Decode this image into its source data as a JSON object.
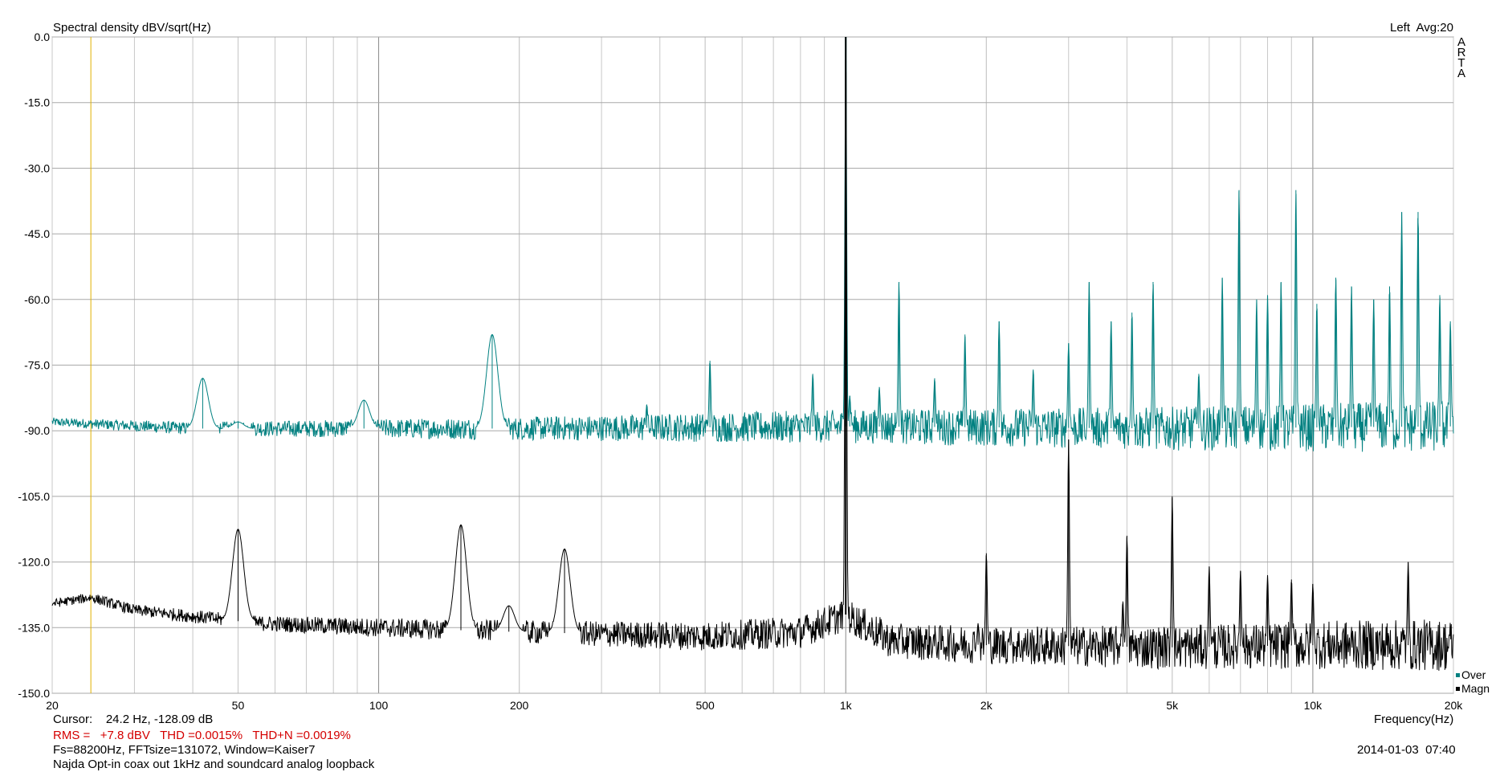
{
  "header": {
    "title": "Spectral density dBV/sqrt(Hz)",
    "channel_info": "Left  Avg:20",
    "brand_letters": [
      "A",
      "R",
      "T",
      "A"
    ]
  },
  "footer": {
    "cursor": "Cursor:    24.2 Hz, -128.09 dB",
    "rms": "RMS =   +7.8 dBV   THD =0.0015%   THD+N =0.0019%",
    "fs": "Fs=88200Hz, FFTsize=131072, Window=Kaiser7",
    "note": "Najda Opt-in coax out 1kHz and soundcard analog loopback",
    "xaxis_label": "Frequency(Hz)",
    "timestamp": "2014-01-03  07:40"
  },
  "chart_data": {
    "type": "line",
    "xscale": "log",
    "xlim": [
      20,
      20000
    ],
    "ylim": [
      -150,
      0
    ],
    "grid": true,
    "cursor_x": 24.2,
    "x_ticks": [
      {
        "value": 20,
        "label": "20"
      },
      {
        "value": 50,
        "label": "50"
      },
      {
        "value": 100,
        "label": "100"
      },
      {
        "value": 200,
        "label": "200"
      },
      {
        "value": 500,
        "label": "500"
      },
      {
        "value": 1000,
        "label": "1k"
      },
      {
        "value": 2000,
        "label": "2k"
      },
      {
        "value": 5000,
        "label": "5k"
      },
      {
        "value": 10000,
        "label": "10k"
      },
      {
        "value": 20000,
        "label": "20k"
      }
    ],
    "y_ticks": [
      {
        "value": 0,
        "label": "0.0"
      },
      {
        "value": -15,
        "label": "-15.0"
      },
      {
        "value": -30,
        "label": "-30.0"
      },
      {
        "value": -45,
        "label": "-45.0"
      },
      {
        "value": -60,
        "label": "-60.0"
      },
      {
        "value": -75,
        "label": "-75.0"
      },
      {
        "value": -90,
        "label": "-90.0"
      },
      {
        "value": -105,
        "label": "-105.0"
      },
      {
        "value": -120,
        "label": "-120.0"
      },
      {
        "value": -135,
        "label": "-135.0"
      },
      {
        "value": -150,
        "label": "-150.0"
      }
    ],
    "legend_position": "bottom-right",
    "series": [
      {
        "name": "Over",
        "color": "#008080",
        "noise_floor": [
          [
            20,
            -88
          ],
          [
            40,
            -89.5
          ],
          [
            200,
            -89.5
          ],
          [
            1000,
            -89
          ],
          [
            5000,
            -89.5
          ],
          [
            20000,
            -89
          ]
        ],
        "peaks": [
          [
            42,
            -78
          ],
          [
            50,
            -88
          ],
          [
            93,
            -83
          ],
          [
            175,
            -68
          ],
          [
            375,
            -84
          ],
          [
            512,
            -74
          ],
          [
            850,
            -77
          ],
          [
            1000,
            0
          ],
          [
            1020,
            -82
          ],
          [
            1180,
            -80
          ],
          [
            1300,
            -56
          ],
          [
            1550,
            -78
          ],
          [
            1800,
            -68
          ],
          [
            2130,
            -65
          ],
          [
            2520,
            -76
          ],
          [
            3000,
            -70
          ],
          [
            3320,
            -56
          ],
          [
            3700,
            -65
          ],
          [
            4100,
            -63
          ],
          [
            4550,
            -56
          ],
          [
            5700,
            -77
          ],
          [
            6400,
            -55
          ],
          [
            6950,
            -35
          ],
          [
            7580,
            -60
          ],
          [
            8000,
            -59
          ],
          [
            8550,
            -56
          ],
          [
            9200,
            -35
          ],
          [
            10200,
            -61
          ],
          [
            11200,
            -55
          ],
          [
            12100,
            -57
          ],
          [
            13500,
            -60
          ],
          [
            14600,
            -57
          ],
          [
            15500,
            -40
          ],
          [
            16800,
            -40
          ],
          [
            18700,
            -59
          ],
          [
            19700,
            -65
          ]
        ]
      },
      {
        "name": "Magn",
        "color": "#000000",
        "noise_floor": [
          [
            20,
            -129.5
          ],
          [
            24.2,
            -128.1
          ],
          [
            30,
            -131
          ],
          [
            45,
            -133
          ],
          [
            55,
            -134
          ],
          [
            100,
            -135
          ],
          [
            200,
            -136
          ],
          [
            500,
            -137
          ],
          [
            800,
            -136
          ],
          [
            1000,
            -132
          ],
          [
            1250,
            -138
          ],
          [
            2000,
            -139
          ],
          [
            5000,
            -139.5
          ],
          [
            10000,
            -139
          ],
          [
            20000,
            -139
          ]
        ],
        "peaks": [
          [
            50,
            -112.5
          ],
          [
            150,
            -111.5
          ],
          [
            190,
            -130
          ],
          [
            250,
            -117
          ],
          [
            1000,
            0
          ],
          [
            1920,
            -134
          ],
          [
            2000,
            -118
          ],
          [
            2250,
            -136
          ],
          [
            3000,
            -92
          ],
          [
            3920,
            -129
          ],
          [
            4000,
            -114
          ],
          [
            5000,
            -105
          ],
          [
            6000,
            -121
          ],
          [
            7000,
            -122
          ],
          [
            8000,
            -123
          ],
          [
            9000,
            -124
          ],
          [
            10000,
            -125
          ],
          [
            16000,
            -120
          ]
        ]
      }
    ]
  }
}
